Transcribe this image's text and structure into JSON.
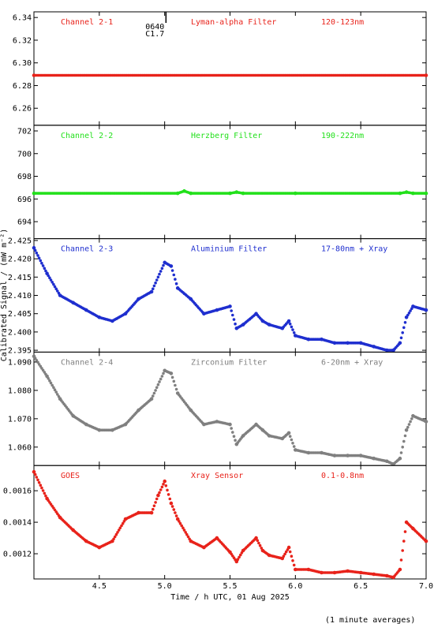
{
  "chart_data": {
    "type": "scatter",
    "xlabel": "Time / h UTC, 01 Aug 2025",
    "ylabel": "Calibrated Signal / (mW m⁻²)",
    "xlim": [
      4.0,
      7.0
    ],
    "xticks": [
      4.5,
      5.0,
      5.5,
      6.0,
      6.5,
      7.0
    ],
    "note": "(1 minute averages)",
    "flare_marker": {
      "x": 5.01,
      "labels": [
        "0640",
        "C1.7"
      ]
    },
    "panels": [
      {
        "channel": "Channel 2-1",
        "filter": "Lyman-alpha Filter",
        "band": "120-123nm",
        "color": "#e8231b",
        "ylim": [
          6.245,
          6.345
        ],
        "yticks": [
          "6.26",
          "6.28",
          "6.30",
          "6.32",
          "6.34"
        ],
        "x": [
          4.0,
          7.0
        ],
        "y": [
          6.289,
          6.289
        ]
      },
      {
        "channel": "Channel 2-2",
        "filter": "Herzberg Filter",
        "band": "190-222nm",
        "color": "#22e01b",
        "ylim": [
          692.5,
          702.5
        ],
        "yticks": [
          "694",
          "696",
          "698",
          "700",
          "702"
        ],
        "x": [
          4.0,
          5.1,
          5.15,
          5.2,
          5.5,
          5.55,
          5.6,
          6.0,
          6.8,
          6.85,
          6.9,
          7.0
        ],
        "y": [
          696.5,
          696.5,
          696.7,
          696.5,
          696.5,
          696.6,
          696.5,
          696.5,
          696.5,
          696.6,
          696.5,
          696.5
        ]
      },
      {
        "channel": "Channel 2-3",
        "filter": "Aluminium Filter",
        "band": "17-80nm + Xray",
        "color": "#1f2fcf",
        "ylim": [
          2.3945,
          2.4255
        ],
        "yticks": [
          "2.395",
          "2.400",
          "2.405",
          "2.410",
          "2.415",
          "2.420",
          "2.425"
        ],
        "x": [
          4.0,
          4.1,
          4.2,
          4.3,
          4.4,
          4.5,
          4.6,
          4.7,
          4.8,
          4.9,
          5.0,
          5.05,
          5.1,
          5.2,
          5.3,
          5.4,
          5.5,
          5.55,
          5.6,
          5.7,
          5.75,
          5.8,
          5.9,
          5.95,
          6.0,
          6.1,
          6.2,
          6.3,
          6.4,
          6.5,
          6.6,
          6.7,
          6.75,
          6.8,
          6.85,
          6.9,
          7.0
        ],
        "y": [
          2.423,
          2.416,
          2.41,
          2.408,
          2.406,
          2.404,
          2.403,
          2.405,
          2.409,
          2.411,
          2.419,
          2.418,
          2.412,
          2.409,
          2.405,
          2.406,
          2.407,
          2.401,
          2.402,
          2.405,
          2.403,
          2.402,
          2.401,
          2.403,
          2.399,
          2.398,
          2.398,
          2.397,
          2.397,
          2.397,
          2.396,
          2.395,
          2.395,
          2.397,
          2.404,
          2.407,
          2.406
        ]
      },
      {
        "channel": "Channel 2-4",
        "filter": "Zirconium Filter",
        "band": "6-20nm + Xray",
        "color": "#808080",
        "ylim": [
          1.0535,
          1.0935
        ],
        "yticks": [
          "1.060",
          "1.070",
          "1.080",
          "1.090"
        ],
        "x": [
          4.0,
          4.1,
          4.2,
          4.3,
          4.4,
          4.5,
          4.6,
          4.7,
          4.8,
          4.9,
          5.0,
          5.05,
          5.1,
          5.2,
          5.3,
          5.4,
          5.5,
          5.55,
          5.6,
          5.7,
          5.75,
          5.8,
          5.9,
          5.95,
          6.0,
          6.1,
          6.2,
          6.3,
          6.4,
          6.5,
          6.6,
          6.7,
          6.75,
          6.8,
          6.85,
          6.9,
          7.0
        ],
        "y": [
          1.092,
          1.085,
          1.077,
          1.071,
          1.068,
          1.066,
          1.066,
          1.068,
          1.073,
          1.077,
          1.087,
          1.086,
          1.079,
          1.073,
          1.068,
          1.069,
          1.068,
          1.061,
          1.064,
          1.068,
          1.066,
          1.064,
          1.063,
          1.065,
          1.059,
          1.058,
          1.058,
          1.057,
          1.057,
          1.057,
          1.056,
          1.055,
          1.054,
          1.056,
          1.066,
          1.071,
          1.069
        ]
      },
      {
        "channel": "GOES",
        "filter": "Xray Sensor",
        "band": "0.1-0.8nm",
        "color": "#e8231b",
        "ylim": [
          0.00104,
          0.00176
        ],
        "yticks": [
          "0.0012",
          "0.0014",
          "0.0016"
        ],
        "x": [
          4.0,
          4.1,
          4.2,
          4.3,
          4.4,
          4.5,
          4.6,
          4.7,
          4.8,
          4.9,
          4.95,
          5.0,
          5.05,
          5.1,
          5.2,
          5.3,
          5.4,
          5.5,
          5.55,
          5.6,
          5.7,
          5.75,
          5.8,
          5.9,
          5.95,
          6.0,
          6.1,
          6.2,
          6.3,
          6.4,
          6.5,
          6.6,
          6.7,
          6.75,
          6.8,
          6.85,
          6.9,
          7.0
        ],
        "y": [
          0.00172,
          0.00155,
          0.00143,
          0.00135,
          0.00128,
          0.00124,
          0.00128,
          0.00142,
          0.00146,
          0.00146,
          0.00157,
          0.00166,
          0.00152,
          0.00142,
          0.00128,
          0.00124,
          0.0013,
          0.00121,
          0.00115,
          0.00122,
          0.0013,
          0.00122,
          0.00119,
          0.00117,
          0.00124,
          0.0011,
          0.0011,
          0.00108,
          0.00108,
          0.00109,
          0.00108,
          0.00107,
          0.00106,
          0.00105,
          0.0011,
          0.0014,
          0.00136,
          0.00128
        ]
      }
    ]
  }
}
